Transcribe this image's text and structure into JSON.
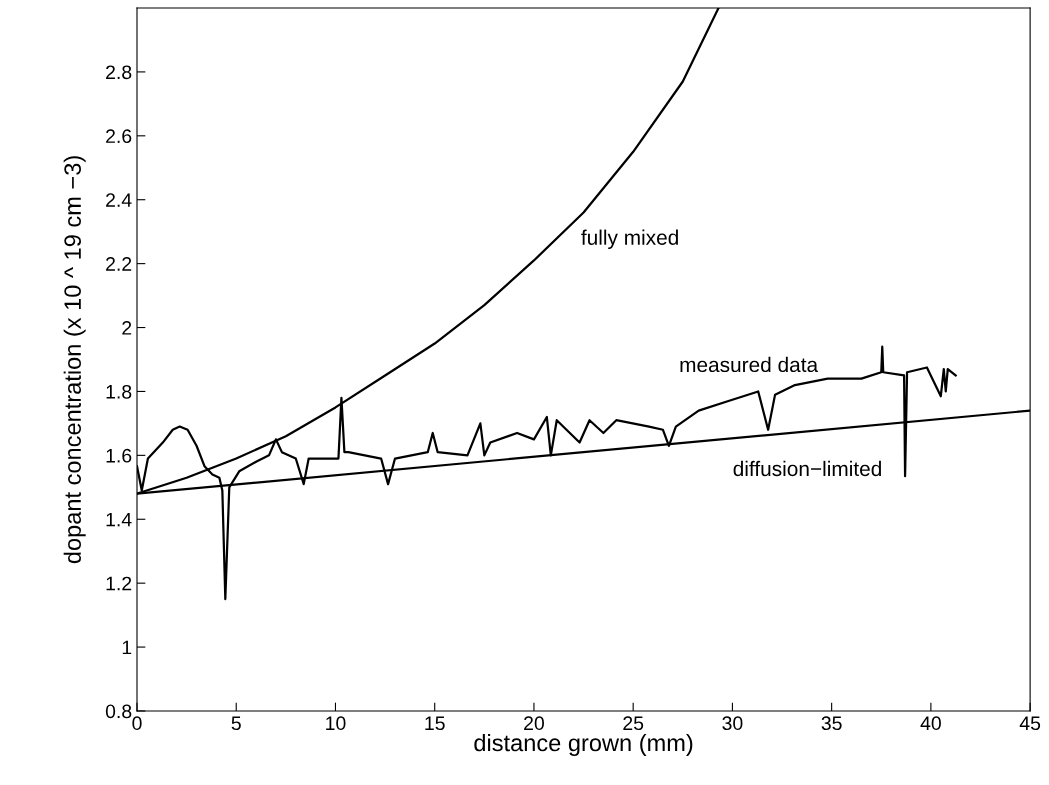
{
  "chart_data": {
    "type": "line",
    "xlabel": "distance grown (mm)",
    "ylabel": "dopant concentration (x 10 ^ 19 cm −3)",
    "xlim": [
      0,
      45
    ],
    "ylim": [
      0.8,
      3.0
    ],
    "xticks": [
      0,
      5,
      10,
      15,
      20,
      25,
      30,
      35,
      40,
      45
    ],
    "yticks": [
      0.8,
      1,
      1.2,
      1.4,
      1.6,
      1.8,
      2,
      2.2,
      2.4,
      2.6,
      2.8
    ],
    "grid": false,
    "legend": false,
    "marker": "none",
    "line_style": "solid",
    "series": [
      {
        "name": "fully mixed",
        "color": "#000000",
        "x": [
          0,
          2.5,
          5,
          7.5,
          10,
          12.5,
          15,
          17.5,
          20,
          22.5,
          25,
          27.5,
          29.3
        ],
        "values": [
          1.48,
          1.53,
          1.59,
          1.66,
          1.75,
          1.85,
          1.95,
          2.07,
          2.21,
          2.36,
          2.55,
          2.77,
          3.0
        ]
      },
      {
        "name": "diffusion−limited",
        "color": "#000000",
        "x": [
          0,
          45
        ],
        "values": [
          1.48,
          1.74
        ]
      },
      {
        "name": "measured data",
        "color": "#000000",
        "x": [
          0,
          0.24,
          0.55,
          1.3,
          1.8,
          2.15,
          2.55,
          3.0,
          3.4,
          3.8,
          4.15,
          4.3,
          4.45,
          4.65,
          5.15,
          6.0,
          6.65,
          7.0,
          7.3,
          8.0,
          8.4,
          8.65,
          10.15,
          10.3,
          10.45,
          10.65,
          12.3,
          12.65,
          13.0,
          14.65,
          14.9,
          15.15,
          16.65,
          17.3,
          17.5,
          17.8,
          19.15,
          20.0,
          20.65,
          20.85,
          21.15,
          22.3,
          22.8,
          23.5,
          24.15,
          25.8,
          26.5,
          26.8,
          27.15,
          28.3,
          29.8,
          31.3,
          31.8,
          32.15,
          33.15,
          34.8,
          36.5,
          37.5,
          37.55,
          37.6,
          38.65,
          38.7,
          38.8,
          39.8,
          40.5,
          40.65,
          40.75,
          40.85,
          41.25
        ],
        "values": [
          1.566,
          1.49,
          1.59,
          1.64,
          1.68,
          1.69,
          1.68,
          1.63,
          1.566,
          1.54,
          1.53,
          1.49,
          1.15,
          1.5,
          1.55,
          1.58,
          1.6,
          1.65,
          1.61,
          1.59,
          1.51,
          1.59,
          1.59,
          1.78,
          1.61,
          1.61,
          1.59,
          1.51,
          1.59,
          1.61,
          1.67,
          1.61,
          1.6,
          1.7,
          1.6,
          1.64,
          1.67,
          1.65,
          1.72,
          1.6,
          1.71,
          1.64,
          1.71,
          1.67,
          1.71,
          1.69,
          1.68,
          1.63,
          1.69,
          1.74,
          1.77,
          1.8,
          1.68,
          1.79,
          1.82,
          1.84,
          1.84,
          1.86,
          1.94,
          1.86,
          1.85,
          1.535,
          1.86,
          1.875,
          1.785,
          1.87,
          1.8,
          1.87,
          1.85
        ]
      }
    ]
  }
}
